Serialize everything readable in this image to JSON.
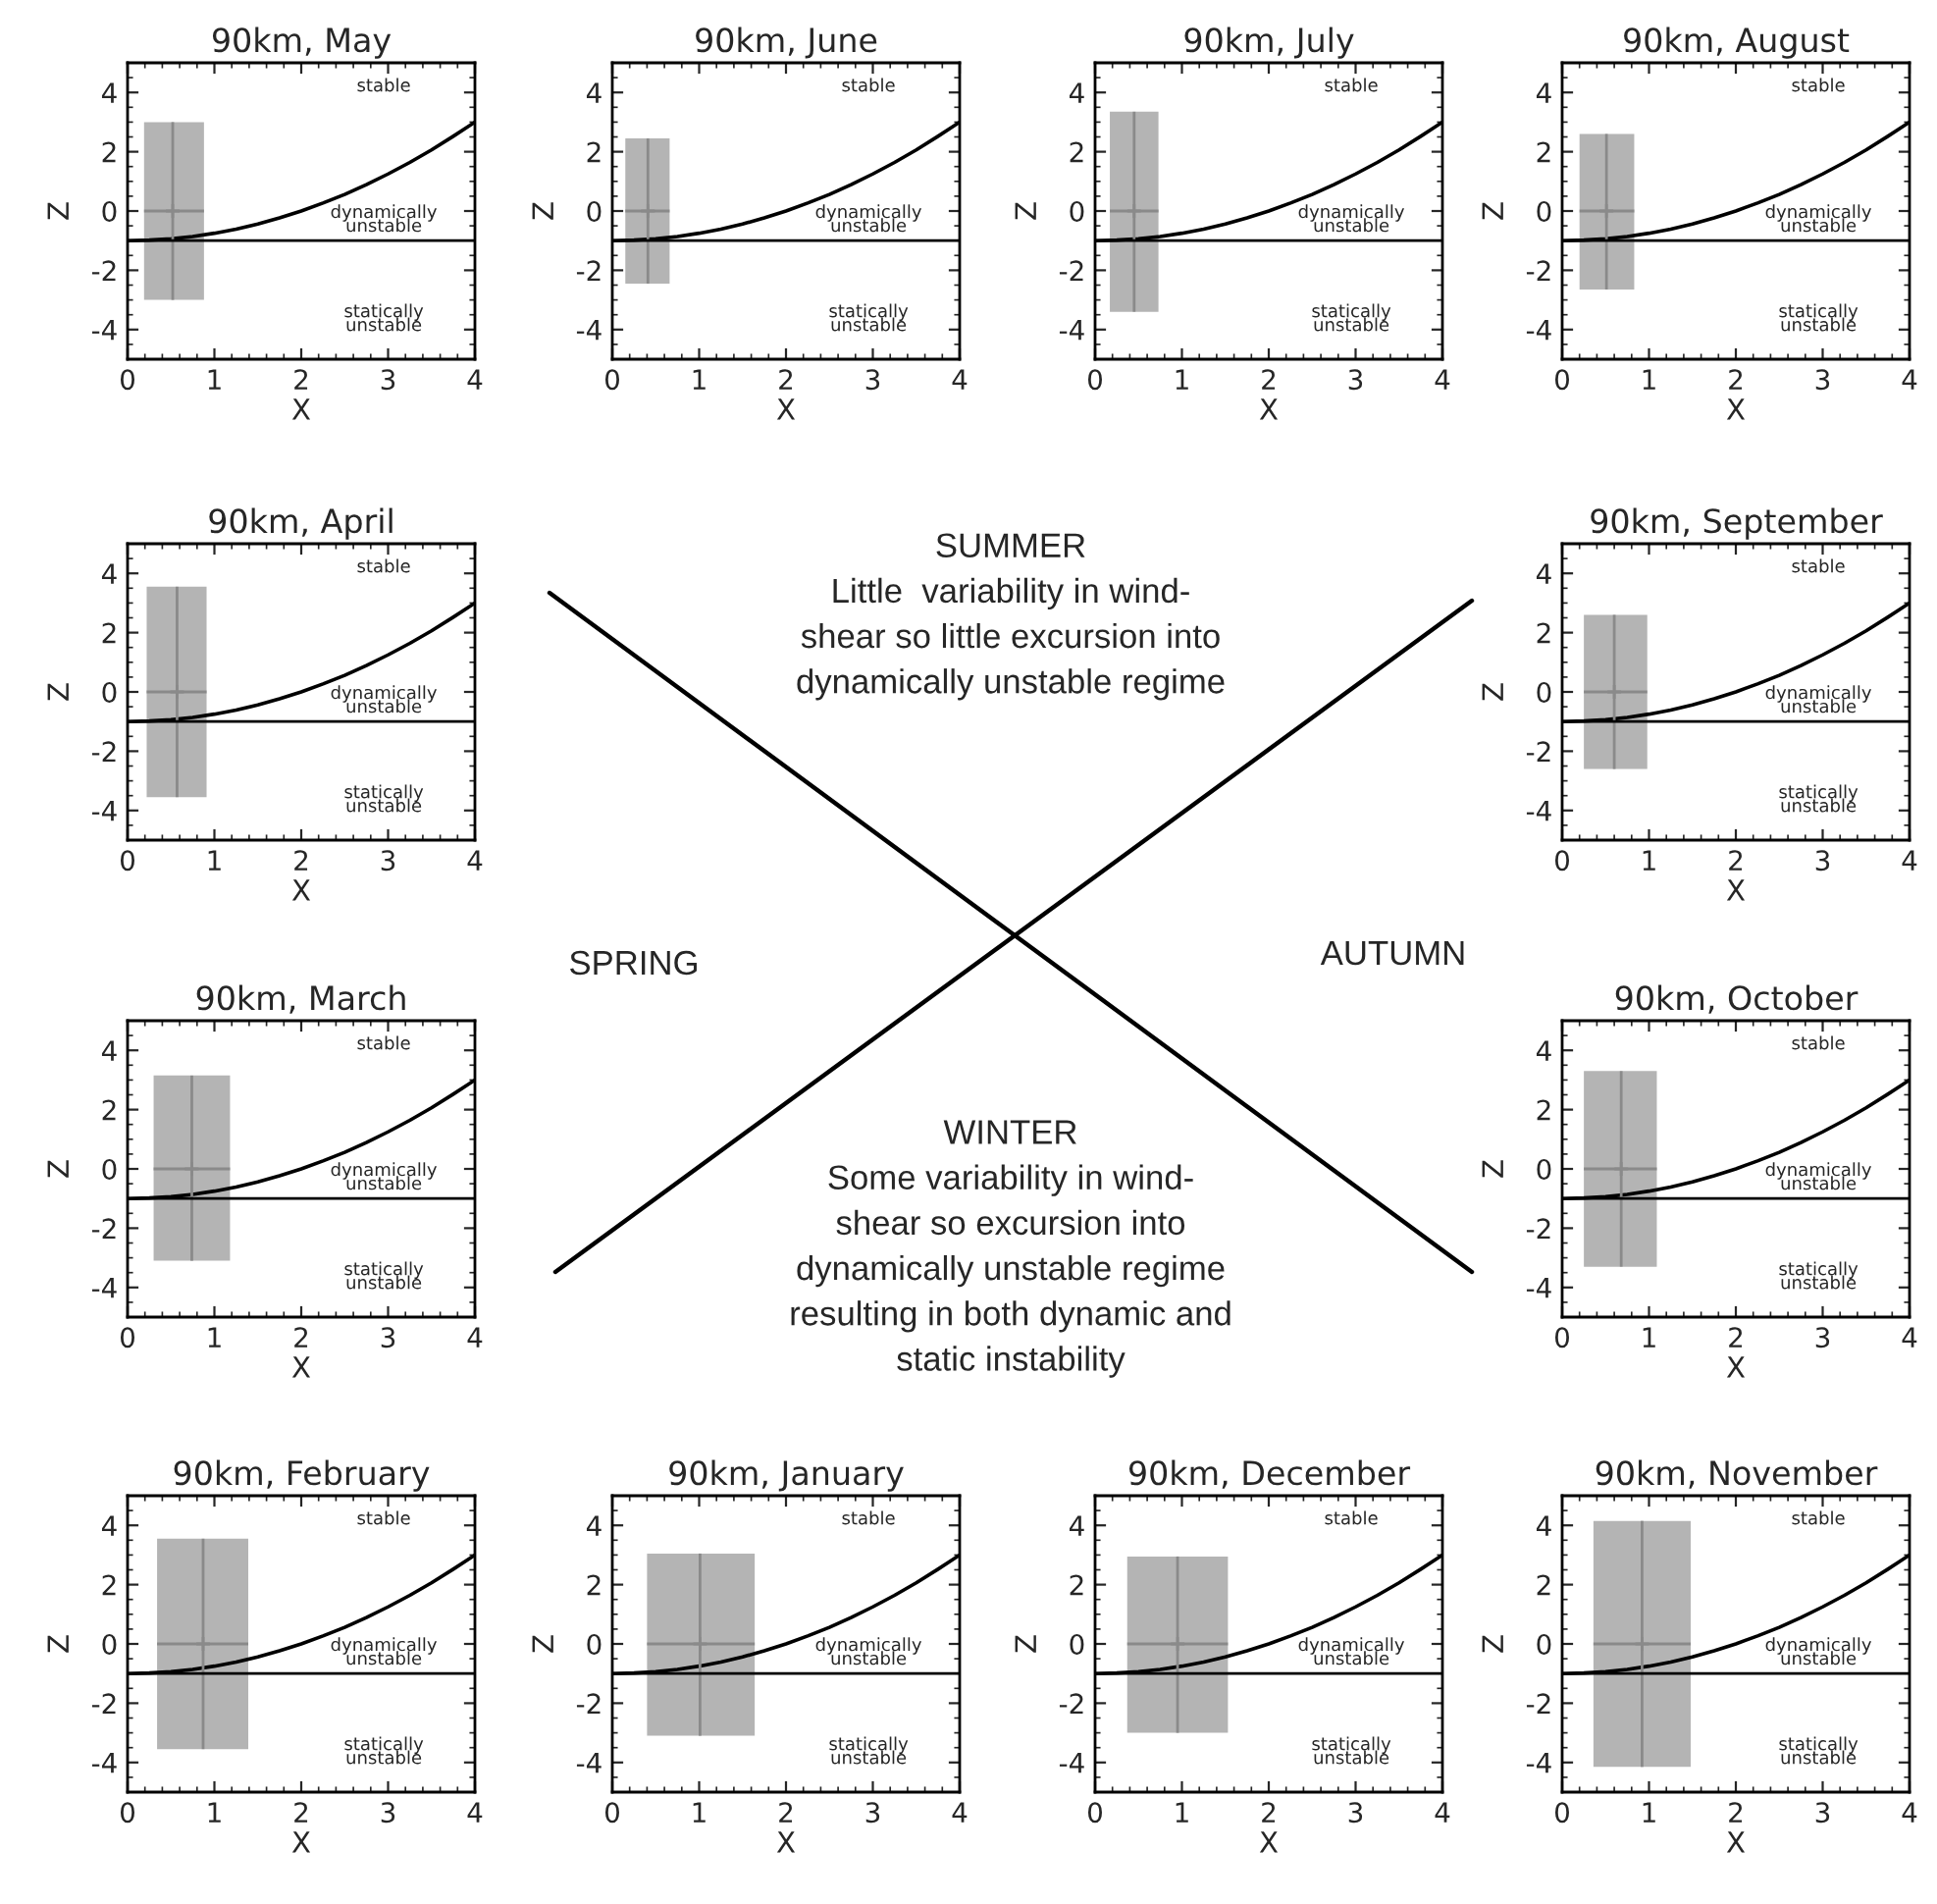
{
  "chart_data": [
    {
      "type": "line",
      "title": "90km, May",
      "xlabel": "X",
      "ylabel": "Z",
      "xlim": [
        0,
        4
      ],
      "ylim": [
        -5,
        5
      ],
      "xticks": [
        0,
        1,
        2,
        3,
        4
      ],
      "yticks": [
        -4,
        -2,
        0,
        2,
        4
      ],
      "series": [
        {
          "type": "line",
          "color": "#000000",
          "x": [
            0,
            0.25,
            0.5,
            0.75,
            1,
            1.25,
            1.5,
            1.75,
            2,
            2.25,
            2.5,
            2.75,
            3,
            3.25,
            3.5,
            3.75,
            4
          ],
          "values": [
            -1,
            -0.98,
            -0.94,
            -0.86,
            -0.75,
            -0.61,
            -0.44,
            -0.23,
            0,
            0.27,
            0.56,
            0.89,
            1.25,
            1.64,
            2.06,
            2.52,
            3
          ]
        },
        {
          "type": "bar",
          "color": "#b4b4b4",
          "x": [
            0.535
          ],
          "base": [
            -3.0
          ],
          "values": [
            6.0
          ]
        },
        {
          "type": "scatter",
          "color": "#8a8a8a",
          "marker": "cross",
          "x": [
            0.52
          ],
          "values": [
            0
          ],
          "errors": [
            [
              -3.0,
              3.0
            ]
          ],
          "xerrors": [
            [
              0.19,
              0.88
            ]
          ]
        }
      ],
      "ref_lines": [
        {
          "axis": "y",
          "value": -1,
          "color": "#000000"
        }
      ],
      "annotations": [
        "stable",
        "dynamically\nunstable",
        "statically\nunstable"
      ]
    },
    {
      "type": "line",
      "title": "90km, June",
      "xlabel": "X",
      "ylabel": "Z",
      "xlim": [
        0,
        4
      ],
      "ylim": [
        -5,
        5
      ],
      "xticks": [
        0,
        1,
        2,
        3,
        4
      ],
      "yticks": [
        -4,
        -2,
        0,
        2,
        4
      ],
      "series": [
        {
          "type": "line",
          "color": "#000000",
          "x": [
            0,
            0.25,
            0.5,
            0.75,
            1,
            1.25,
            1.5,
            1.75,
            2,
            2.25,
            2.5,
            2.75,
            3,
            3.25,
            3.5,
            3.75,
            4
          ],
          "values": [
            -1,
            -0.98,
            -0.94,
            -0.86,
            -0.75,
            -0.61,
            -0.44,
            -0.23,
            0,
            0.27,
            0.56,
            0.89,
            1.25,
            1.64,
            2.06,
            2.52,
            3
          ]
        },
        {
          "type": "bar",
          "color": "#b4b4b4",
          "x": [
            0.405
          ],
          "base": [
            -2.45
          ],
          "values": [
            4.9
          ]
        },
        {
          "type": "scatter",
          "color": "#8a8a8a",
          "marker": "cross",
          "x": [
            0.41
          ],
          "values": [
            0
          ],
          "errors": [
            [
              -2.45,
              2.45
            ]
          ],
          "xerrors": [
            [
              0.15,
              0.66
            ]
          ]
        }
      ],
      "ref_lines": [
        {
          "axis": "y",
          "value": -1,
          "color": "#000000"
        }
      ],
      "annotations": [
        "stable",
        "dynamically\nunstable",
        "statically\nunstable"
      ]
    },
    {
      "type": "line",
      "title": "90km, July",
      "xlabel": "X",
      "ylabel": "Z",
      "xlim": [
        0,
        4
      ],
      "ylim": [
        -5,
        5
      ],
      "xticks": [
        0,
        1,
        2,
        3,
        4
      ],
      "yticks": [
        -4,
        -2,
        0,
        2,
        4
      ],
      "series": [
        {
          "type": "line",
          "color": "#000000",
          "x": [
            0,
            0.25,
            0.5,
            0.75,
            1,
            1.25,
            1.5,
            1.75,
            2,
            2.25,
            2.5,
            2.75,
            3,
            3.25,
            3.5,
            3.75,
            4
          ],
          "values": [
            -1,
            -0.98,
            -0.94,
            -0.86,
            -0.75,
            -0.61,
            -0.44,
            -0.23,
            0,
            0.27,
            0.56,
            0.89,
            1.25,
            1.64,
            2.06,
            2.52,
            3
          ]
        },
        {
          "type": "bar",
          "color": "#b4b4b4",
          "x": [
            0.45
          ],
          "base": [
            -3.4
          ],
          "values": [
            6.75
          ]
        },
        {
          "type": "scatter",
          "color": "#8a8a8a",
          "marker": "cross",
          "x": [
            0.45
          ],
          "values": [
            0
          ],
          "errors": [
            [
              -3.4,
              3.35
            ]
          ],
          "xerrors": [
            [
              0.17,
              0.73
            ]
          ]
        }
      ],
      "ref_lines": [
        {
          "axis": "y",
          "value": -1,
          "color": "#000000"
        }
      ],
      "annotations": [
        "stable",
        "dynamically\nunstable",
        "statically\nunstable"
      ]
    },
    {
      "type": "line",
      "title": "90km, August",
      "xlabel": "X",
      "ylabel": "Z",
      "xlim": [
        0,
        4
      ],
      "ylim": [
        -5,
        5
      ],
      "xticks": [
        0,
        1,
        2,
        3,
        4
      ],
      "yticks": [
        -4,
        -2,
        0,
        2,
        4
      ],
      "series": [
        {
          "type": "line",
          "color": "#000000",
          "x": [
            0,
            0.25,
            0.5,
            0.75,
            1,
            1.25,
            1.5,
            1.75,
            2,
            2.25,
            2.5,
            2.75,
            3,
            3.25,
            3.5,
            3.75,
            4
          ],
          "values": [
            -1,
            -0.98,
            -0.94,
            -0.86,
            -0.75,
            -0.61,
            -0.44,
            -0.23,
            0,
            0.27,
            0.56,
            0.89,
            1.25,
            1.64,
            2.06,
            2.52,
            3
          ]
        },
        {
          "type": "bar",
          "color": "#b4b4b4",
          "x": [
            0.515
          ],
          "base": [
            -2.65
          ],
          "values": [
            5.25
          ]
        },
        {
          "type": "scatter",
          "color": "#8a8a8a",
          "marker": "cross",
          "x": [
            0.51
          ],
          "values": [
            0
          ],
          "errors": [
            [
              -2.65,
              2.6
            ]
          ],
          "xerrors": [
            [
              0.2,
              0.83
            ]
          ]
        }
      ],
      "ref_lines": [
        {
          "axis": "y",
          "value": -1,
          "color": "#000000"
        }
      ],
      "annotations": [
        "stable",
        "dynamically\nunstable",
        "statically\nunstable"
      ]
    },
    {
      "type": "line",
      "title": "90km, April",
      "xlabel": "X",
      "ylabel": "Z",
      "xlim": [
        0,
        4
      ],
      "ylim": [
        -5,
        5
      ],
      "xticks": [
        0,
        1,
        2,
        3,
        4
      ],
      "yticks": [
        -4,
        -2,
        0,
        2,
        4
      ],
      "series": [
        {
          "type": "line",
          "color": "#000000",
          "x": [
            0,
            0.25,
            0.5,
            0.75,
            1,
            1.25,
            1.5,
            1.75,
            2,
            2.25,
            2.5,
            2.75,
            3,
            3.25,
            3.5,
            3.75,
            4
          ],
          "values": [
            -1,
            -0.98,
            -0.94,
            -0.86,
            -0.75,
            -0.61,
            -0.44,
            -0.23,
            0,
            0.27,
            0.56,
            0.89,
            1.25,
            1.64,
            2.06,
            2.52,
            3
          ]
        },
        {
          "type": "bar",
          "color": "#b4b4b4",
          "x": [
            0.565
          ],
          "base": [
            -3.55
          ],
          "values": [
            7.1
          ]
        },
        {
          "type": "scatter",
          "color": "#8a8a8a",
          "marker": "cross",
          "x": [
            0.57
          ],
          "values": [
            0
          ],
          "errors": [
            [
              -3.55,
              3.55
            ]
          ],
          "xerrors": [
            [
              0.22,
              0.91
            ]
          ]
        }
      ],
      "ref_lines": [
        {
          "axis": "y",
          "value": -1,
          "color": "#000000"
        }
      ],
      "annotations": [
        "stable",
        "dynamically\nunstable",
        "statically\nunstable"
      ]
    },
    {
      "type": "other",
      "annotations": [
        "SUMMER\nLittle  variability in wind-\nshear so little excursion into\ndynamically unstable regime",
        "SPRING",
        "AUTUMN",
        "WINTER\nSome variability in wind-\nshear so excursion into\ndynamically unstable regime\nresulting in both dynamic and\nstatic instability"
      ]
    },
    {
      "type": "line",
      "title": "90km, September",
      "xlabel": "X",
      "ylabel": "Z",
      "xlim": [
        0,
        4
      ],
      "ylim": [
        -5,
        5
      ],
      "xticks": [
        0,
        1,
        2,
        3,
        4
      ],
      "yticks": [
        -4,
        -2,
        0,
        2,
        4
      ],
      "series": [
        {
          "type": "line",
          "color": "#000000",
          "x": [
            0,
            0.25,
            0.5,
            0.75,
            1,
            1.25,
            1.5,
            1.75,
            2,
            2.25,
            2.5,
            2.75,
            3,
            3.25,
            3.5,
            3.75,
            4
          ],
          "values": [
            -1,
            -0.98,
            -0.94,
            -0.86,
            -0.75,
            -0.61,
            -0.44,
            -0.23,
            0,
            0.27,
            0.56,
            0.89,
            1.25,
            1.64,
            2.06,
            2.52,
            3
          ]
        },
        {
          "type": "bar",
          "color": "#b4b4b4",
          "x": [
            0.615
          ],
          "base": [
            -2.6
          ],
          "values": [
            5.2
          ]
        },
        {
          "type": "scatter",
          "color": "#8a8a8a",
          "marker": "cross",
          "x": [
            0.6
          ],
          "values": [
            0
          ],
          "errors": [
            [
              -2.6,
              2.6
            ]
          ],
          "xerrors": [
            [
              0.25,
              0.98
            ]
          ]
        }
      ],
      "ref_lines": [
        {
          "axis": "y",
          "value": -1,
          "color": "#000000"
        }
      ],
      "annotations": [
        "stable",
        "dynamically\nunstable",
        "statically\nunstable"
      ]
    },
    {
      "type": "line",
      "title": "90km, March",
      "xlabel": "X",
      "ylabel": "Z",
      "xlim": [
        0,
        4
      ],
      "ylim": [
        -5,
        5
      ],
      "xticks": [
        0,
        1,
        2,
        3,
        4
      ],
      "yticks": [
        -4,
        -2,
        0,
        2,
        4
      ],
      "series": [
        {
          "type": "line",
          "color": "#000000",
          "x": [
            0,
            0.25,
            0.5,
            0.75,
            1,
            1.25,
            1.5,
            1.75,
            2,
            2.25,
            2.5,
            2.75,
            3,
            3.25,
            3.5,
            3.75,
            4
          ],
          "values": [
            -1,
            -0.98,
            -0.94,
            -0.86,
            -0.75,
            -0.61,
            -0.44,
            -0.23,
            0,
            0.27,
            0.56,
            0.89,
            1.25,
            1.64,
            2.06,
            2.52,
            3
          ]
        },
        {
          "type": "bar",
          "color": "#b4b4b4",
          "x": [
            0.74
          ],
          "base": [
            -3.1
          ],
          "values": [
            6.25
          ]
        },
        {
          "type": "scatter",
          "color": "#8a8a8a",
          "marker": "cross",
          "x": [
            0.74
          ],
          "values": [
            0
          ],
          "errors": [
            [
              -3.1,
              3.15
            ]
          ],
          "xerrors": [
            [
              0.3,
              1.18
            ]
          ]
        }
      ],
      "ref_lines": [
        {
          "axis": "y",
          "value": -1,
          "color": "#000000"
        }
      ],
      "annotations": [
        "stable",
        "dynamically\nunstable",
        "statically\nunstable"
      ]
    },
    {
      "type": "line",
      "title": "90km, October",
      "xlabel": "X",
      "ylabel": "Z",
      "xlim": [
        0,
        4
      ],
      "ylim": [
        -5,
        5
      ],
      "xticks": [
        0,
        1,
        2,
        3,
        4
      ],
      "yticks": [
        -4,
        -2,
        0,
        2,
        4
      ],
      "series": [
        {
          "type": "line",
          "color": "#000000",
          "x": [
            0,
            0.25,
            0.5,
            0.75,
            1,
            1.25,
            1.5,
            1.75,
            2,
            2.25,
            2.5,
            2.75,
            3,
            3.25,
            3.5,
            3.75,
            4
          ],
          "values": [
            -1,
            -0.98,
            -0.94,
            -0.86,
            -0.75,
            -0.61,
            -0.44,
            -0.23,
            0,
            0.27,
            0.56,
            0.89,
            1.25,
            1.64,
            2.06,
            2.52,
            3
          ]
        },
        {
          "type": "bar",
          "color": "#b4b4b4",
          "x": [
            0.67
          ],
          "base": [
            -3.3
          ],
          "values": [
            6.6
          ]
        },
        {
          "type": "scatter",
          "color": "#8a8a8a",
          "marker": "cross",
          "x": [
            0.68
          ],
          "values": [
            0
          ],
          "errors": [
            [
              -3.3,
              3.3
            ]
          ],
          "xerrors": [
            [
              0.25,
              1.09
            ]
          ]
        }
      ],
      "ref_lines": [
        {
          "axis": "y",
          "value": -1,
          "color": "#000000"
        }
      ],
      "annotations": [
        "stable",
        "dynamically\nunstable",
        "statically\nunstable"
      ]
    },
    {
      "type": "line",
      "title": "90km, February",
      "xlabel": "X",
      "ylabel": "Z",
      "xlim": [
        0,
        4
      ],
      "ylim": [
        -5,
        5
      ],
      "xticks": [
        0,
        1,
        2,
        3,
        4
      ],
      "yticks": [
        -4,
        -2,
        0,
        2,
        4
      ],
      "series": [
        {
          "type": "line",
          "color": "#000000",
          "x": [
            0,
            0.25,
            0.5,
            0.75,
            1,
            1.25,
            1.5,
            1.75,
            2,
            2.25,
            2.5,
            2.75,
            3,
            3.25,
            3.5,
            3.75,
            4
          ],
          "values": [
            -1,
            -0.98,
            -0.94,
            -0.86,
            -0.75,
            -0.61,
            -0.44,
            -0.23,
            0,
            0.27,
            0.56,
            0.89,
            1.25,
            1.64,
            2.06,
            2.52,
            3
          ]
        },
        {
          "type": "bar",
          "color": "#b4b4b4",
          "x": [
            0.865
          ],
          "base": [
            -3.55
          ],
          "values": [
            7.1
          ]
        },
        {
          "type": "scatter",
          "color": "#8a8a8a",
          "marker": "cross",
          "x": [
            0.87
          ],
          "values": [
            0
          ],
          "errors": [
            [
              -3.55,
              3.55
            ]
          ],
          "xerrors": [
            [
              0.34,
              1.39
            ]
          ]
        }
      ],
      "ref_lines": [
        {
          "axis": "y",
          "value": -1,
          "color": "#000000"
        }
      ],
      "annotations": [
        "stable",
        "dynamically\nunstable",
        "statically\nunstable"
      ]
    },
    {
      "type": "line",
      "title": "90km, January",
      "xlabel": "X",
      "ylabel": "Z",
      "xlim": [
        0,
        4
      ],
      "ylim": [
        -5,
        5
      ],
      "xticks": [
        0,
        1,
        2,
        3,
        4
      ],
      "yticks": [
        -4,
        -2,
        0,
        2,
        4
      ],
      "series": [
        {
          "type": "line",
          "color": "#000000",
          "x": [
            0,
            0.25,
            0.5,
            0.75,
            1,
            1.25,
            1.5,
            1.75,
            2,
            2.25,
            2.5,
            2.75,
            3,
            3.25,
            3.5,
            3.75,
            4
          ],
          "values": [
            -1,
            -0.98,
            -0.94,
            -0.86,
            -0.75,
            -0.61,
            -0.44,
            -0.23,
            0,
            0.27,
            0.56,
            0.89,
            1.25,
            1.64,
            2.06,
            2.52,
            3
          ]
        },
        {
          "type": "bar",
          "color": "#b4b4b4",
          "x": [
            1.02
          ],
          "base": [
            -3.1
          ],
          "values": [
            6.15
          ]
        },
        {
          "type": "scatter",
          "color": "#8a8a8a",
          "marker": "cross",
          "x": [
            1.01
          ],
          "values": [
            0
          ],
          "errors": [
            [
              -3.1,
              3.05
            ]
          ],
          "xerrors": [
            [
              0.4,
              1.64
            ]
          ]
        }
      ],
      "ref_lines": [
        {
          "axis": "y",
          "value": -1,
          "color": "#000000"
        }
      ],
      "annotations": [
        "stable",
        "dynamically\nunstable",
        "statically\nunstable"
      ]
    },
    {
      "type": "line",
      "title": "90km, December",
      "xlabel": "X",
      "ylabel": "Z",
      "xlim": [
        0,
        4
      ],
      "ylim": [
        -5,
        5
      ],
      "xticks": [
        0,
        1,
        2,
        3,
        4
      ],
      "yticks": [
        -4,
        -2,
        0,
        2,
        4
      ],
      "series": [
        {
          "type": "line",
          "color": "#000000",
          "x": [
            0,
            0.25,
            0.5,
            0.75,
            1,
            1.25,
            1.5,
            1.75,
            2,
            2.25,
            2.5,
            2.75,
            3,
            3.25,
            3.5,
            3.75,
            4
          ],
          "values": [
            -1,
            -0.98,
            -0.94,
            -0.86,
            -0.75,
            -0.61,
            -0.44,
            -0.23,
            0,
            0.27,
            0.56,
            0.89,
            1.25,
            1.64,
            2.06,
            2.52,
            3
          ]
        },
        {
          "type": "bar",
          "color": "#b4b4b4",
          "x": [
            0.95
          ],
          "base": [
            -3.0
          ],
          "values": [
            5.95
          ]
        },
        {
          "type": "scatter",
          "color": "#8a8a8a",
          "marker": "cross",
          "x": [
            0.95
          ],
          "values": [
            0
          ],
          "errors": [
            [
              -3.0,
              2.95
            ]
          ],
          "xerrors": [
            [
              0.37,
              1.53
            ]
          ]
        }
      ],
      "ref_lines": [
        {
          "axis": "y",
          "value": -1,
          "color": "#000000"
        }
      ],
      "annotations": [
        "stable",
        "dynamically\nunstable",
        "statically\nunstable"
      ]
    },
    {
      "type": "line",
      "title": "90km, November",
      "xlabel": "X",
      "ylabel": "Z",
      "xlim": [
        0,
        4
      ],
      "ylim": [
        -5,
        5
      ],
      "xticks": [
        0,
        1,
        2,
        3,
        4
      ],
      "yticks": [
        -4,
        -2,
        0,
        2,
        4
      ],
      "series": [
        {
          "type": "line",
          "color": "#000000",
          "x": [
            0,
            0.25,
            0.5,
            0.75,
            1,
            1.25,
            1.5,
            1.75,
            2,
            2.25,
            2.5,
            2.75,
            3,
            3.25,
            3.5,
            3.75,
            4
          ],
          "values": [
            -1,
            -0.98,
            -0.94,
            -0.86,
            -0.75,
            -0.61,
            -0.44,
            -0.23,
            0,
            0.27,
            0.56,
            0.89,
            1.25,
            1.64,
            2.06,
            2.52,
            3
          ]
        },
        {
          "type": "bar",
          "color": "#b4b4b4",
          "x": [
            0.92
          ],
          "base": [
            -4.15
          ],
          "values": [
            8.3
          ]
        },
        {
          "type": "scatter",
          "color": "#8a8a8a",
          "marker": "cross",
          "x": [
            0.92
          ],
          "values": [
            0
          ],
          "errors": [
            [
              -4.15,
              4.15
            ]
          ],
          "xerrors": [
            [
              0.36,
              1.48
            ]
          ]
        }
      ],
      "ref_lines": [
        {
          "axis": "y",
          "value": -1,
          "color": "#000000"
        }
      ],
      "annotations": [
        "stable",
        "dynamically\nunstable",
        "statically\nunstable"
      ]
    }
  ]
}
